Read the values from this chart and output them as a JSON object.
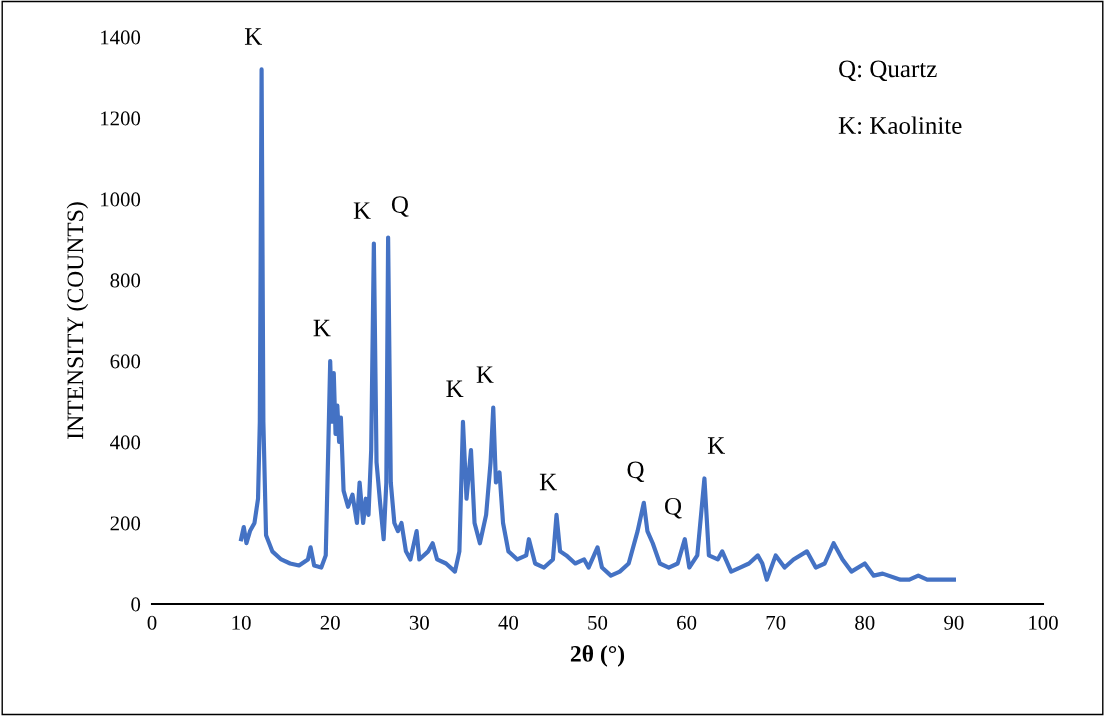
{
  "chart_data": {
    "type": "line",
    "xlabel": "2θ (°)",
    "ylabel": "INTENSITY (COUNTS)",
    "xlim": [
      0,
      100
    ],
    "xticks": [
      0,
      10,
      20,
      30,
      40,
      50,
      60,
      70,
      80,
      90,
      100
    ],
    "ylim": [
      0,
      1400
    ],
    "yticks": [
      0,
      200,
      400,
      600,
      800,
      1000,
      1200,
      1400
    ],
    "grid": false,
    "legend": false,
    "series": [
      {
        "color": "#4472c4",
        "x": [
          10,
          10.3,
          10.6,
          11,
          11.5,
          11.9,
          12.1,
          12.3,
          12.5,
          12.8,
          13.5,
          14.5,
          15.5,
          16.5,
          17.5,
          17.8,
          18.2,
          19,
          19.5,
          19.8,
          20.0,
          20.2,
          20.4,
          20.6,
          20.8,
          21.0,
          21.2,
          21.5,
          22,
          22.5,
          23,
          23.3,
          23.7,
          24,
          24.3,
          24.6,
          24.9,
          25.2,
          25.6,
          26,
          26.3,
          26.5,
          26.8,
          27.2,
          27.6,
          28,
          28.5,
          29,
          29.7,
          30,
          31,
          31.5,
          32,
          33,
          34,
          34.5,
          34.9,
          35.3,
          35.8,
          36.2,
          36.8,
          37.5,
          38,
          38.3,
          38.6,
          39.0,
          39.4,
          40,
          41,
          42,
          42.3,
          43,
          44,
          45,
          45.4,
          45.8,
          46.5,
          47.5,
          48.5,
          49,
          50,
          50.5,
          51.5,
          52.5,
          53.5,
          54.5,
          55.2,
          55.6,
          56.2,
          57,
          58,
          59,
          59.8,
          60.3,
          61.2,
          62.0,
          62.5,
          63.5,
          64,
          65,
          66,
          67,
          68,
          68.5,
          69,
          70,
          71,
          72,
          73.5,
          74.5,
          75.5,
          76.5,
          77.5,
          78.5,
          80,
          81,
          82,
          84,
          85,
          86,
          87,
          88,
          90
        ],
        "values": [
          160,
          190,
          150,
          180,
          200,
          260,
          450,
          1320,
          450,
          170,
          130,
          110,
          100,
          95,
          110,
          140,
          95,
          90,
          120,
          400,
          600,
          450,
          570,
          420,
          490,
          400,
          460,
          280,
          240,
          270,
          200,
          300,
          200,
          260,
          220,
          380,
          890,
          350,
          250,
          160,
          300,
          905,
          300,
          200,
          180,
          200,
          130,
          110,
          180,
          110,
          130,
          150,
          110,
          100,
          80,
          130,
          450,
          260,
          380,
          200,
          150,
          220,
          350,
          485,
          300,
          325,
          200,
          130,
          110,
          120,
          160,
          100,
          90,
          110,
          220,
          130,
          120,
          100,
          110,
          90,
          140,
          90,
          70,
          80,
          100,
          180,
          250,
          180,
          150,
          100,
          90,
          100,
          160,
          90,
          120,
          310,
          120,
          110,
          130,
          80,
          90,
          100,
          120,
          100,
          60,
          120,
          90,
          110,
          130,
          90,
          100,
          150,
          110,
          80,
          100,
          70,
          75,
          60,
          60,
          70,
          60,
          60,
          60
        ]
      }
    ],
    "annotations": [
      {
        "text": "K",
        "x": 12.3,
        "y": 1320
      },
      {
        "text": "K",
        "x": 20.0,
        "y": 600
      },
      {
        "text": "K",
        "x": 24.9,
        "y": 890
      },
      {
        "text": "Q",
        "x": 26.5,
        "y": 905
      },
      {
        "text": "K",
        "x": 34.9,
        "y": 450
      },
      {
        "text": "K",
        "x": 38.3,
        "y": 485
      },
      {
        "text": "K",
        "x": 45.4,
        "y": 220
      },
      {
        "text": "Q",
        "x": 55.2,
        "y": 250
      },
      {
        "text": "Q",
        "x": 59.8,
        "y": 160
      },
      {
        "text": "K",
        "x": 62.0,
        "y": 310
      },
      "Q: Quartz",
      "K: Kaolinite"
    ]
  }
}
